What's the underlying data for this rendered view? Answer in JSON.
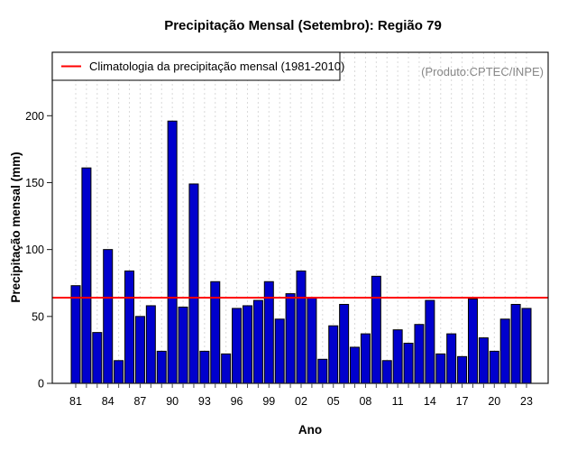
{
  "title": "Precipitação Mensal (Setembro): Região 79",
  "watermark": "(Produto:CPTEC/INPE)",
  "legend": {
    "label": "Climatologia da precipitação mensal (1981-2010)"
  },
  "chart_data": {
    "type": "bar",
    "title": "Precipitação Mensal (Setembro): Região 79",
    "xlabel": "Ano",
    "ylabel": "Precipitação mensal (mm)",
    "ylim": [
      0,
      247
    ],
    "yticks": [
      0,
      50,
      100,
      150,
      200
    ],
    "grid": "vertical-dashed",
    "legend_position": "top-left",
    "legend_label": "Climatologia da precipitação mensal (1981-2010)",
    "watermark": "(Produto:CPTEC/INPE)",
    "bar_color": "#0000cd",
    "bar_border_color": "#000000",
    "grid_color": "#d9d9d9",
    "climatology_color": "#ff0000",
    "climatology_value": 64,
    "years": [
      1981,
      1982,
      1983,
      1984,
      1985,
      1986,
      1987,
      1988,
      1989,
      1990,
      1991,
      1992,
      1993,
      1994,
      1995,
      1996,
      1997,
      1998,
      1999,
      2000,
      2001,
      2002,
      2003,
      2004,
      2005,
      2006,
      2007,
      2008,
      2009,
      2010,
      2011,
      2012,
      2013,
      2014,
      2015,
      2016,
      2017,
      2018,
      2019,
      2020,
      2021,
      2022,
      2023
    ],
    "values": [
      73,
      161,
      38,
      100,
      17,
      84,
      50,
      58,
      24,
      196,
      57,
      149,
      24,
      76,
      22,
      56,
      58,
      62,
      76,
      48,
      67,
      84,
      64,
      18,
      43,
      59,
      27,
      37,
      80,
      17,
      40,
      30,
      44,
      62,
      22,
      37,
      20,
      63,
      34,
      24,
      48,
      59,
      56
    ],
    "x_tick_label_every": 3,
    "x_tick_labels": [
      "81",
      "84",
      "87",
      "90",
      "93",
      "96",
      "99",
      "02",
      "05",
      "08",
      "11",
      "14",
      "17",
      "20",
      "23"
    ]
  }
}
